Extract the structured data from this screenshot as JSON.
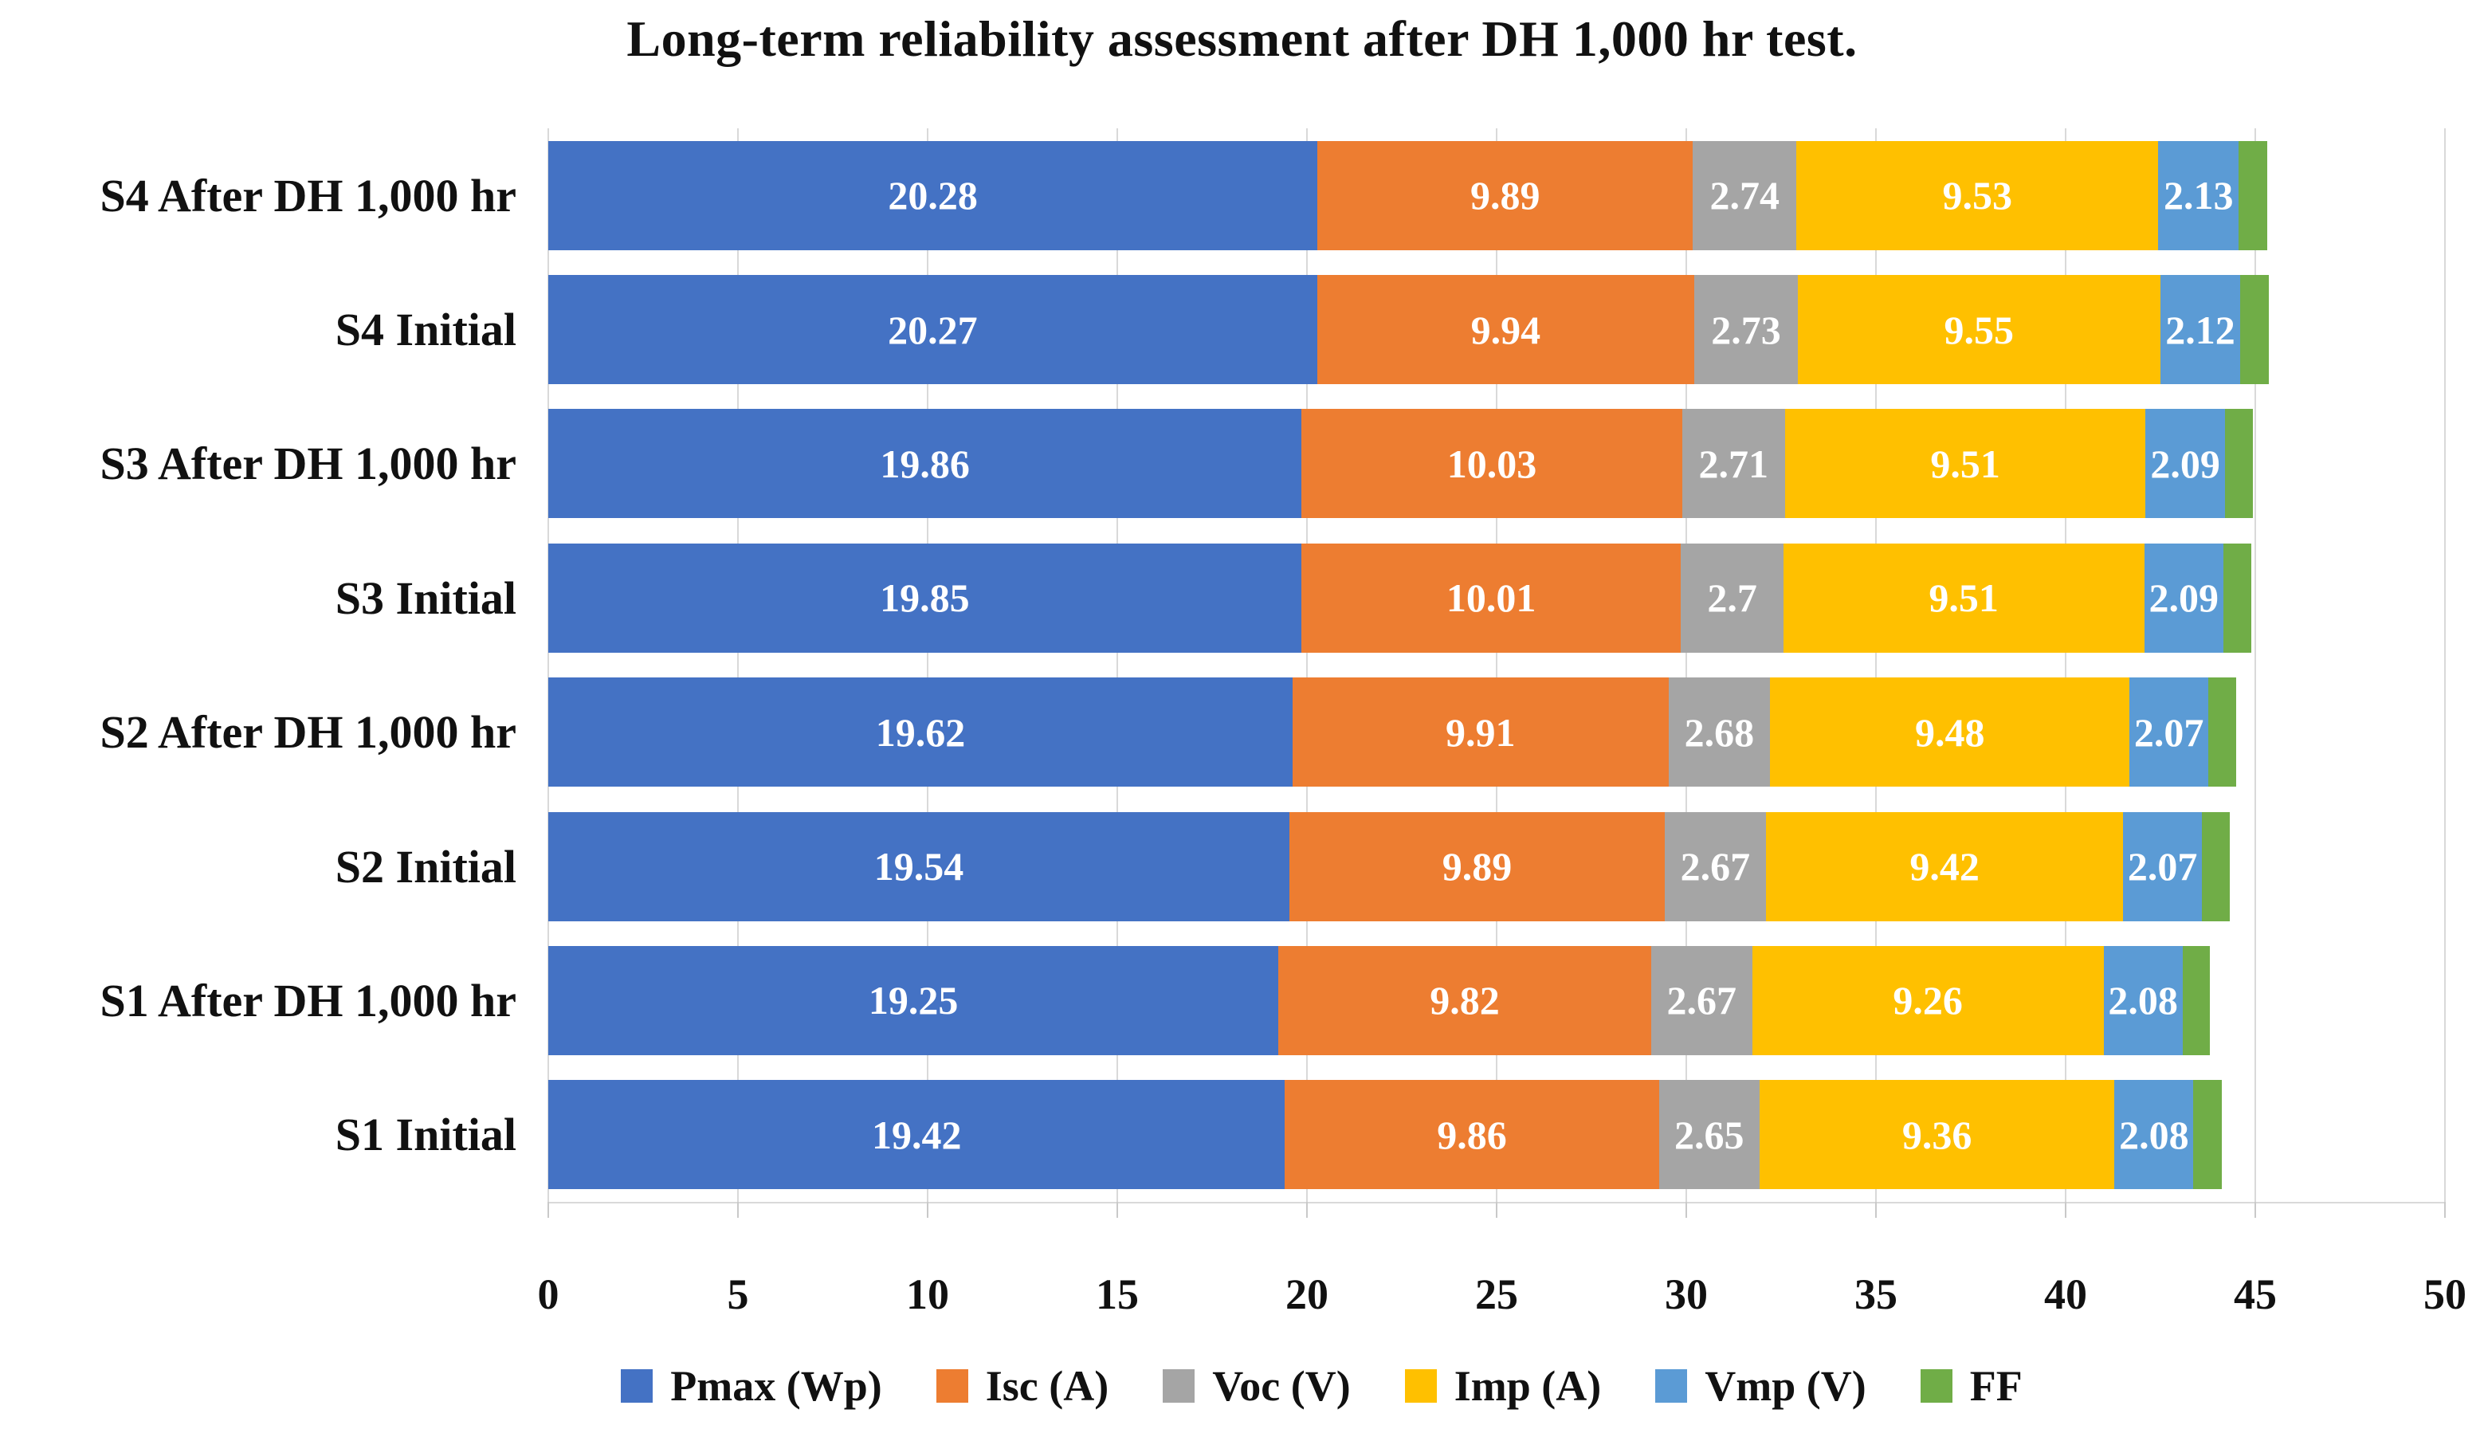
{
  "title": "Long-term reliability assessment after DH 1,000 hr test.",
  "chart_data": {
    "type": "bar",
    "orientation": "horizontal-stacked",
    "title": "Long-term reliability assessment after DH 1,000 hr test.",
    "categories": [
      "S4 After DH 1,000 hr",
      "S4 Initial",
      "S3 After DH 1,000 hr",
      "S3 Initial",
      "S2 After DH 1,000 hr",
      "S2 Initial",
      "S1 After DH 1,000 hr",
      "S1 Initial"
    ],
    "series": [
      {
        "name": "Pmax (Wp)",
        "color": "#4472C4",
        "labels_shown": true,
        "values": [
          20.28,
          20.27,
          19.86,
          19.85,
          19.62,
          19.54,
          19.25,
          19.42
        ]
      },
      {
        "name": "Isc (A)",
        "color": "#ED7D31",
        "labels_shown": true,
        "values": [
          9.89,
          9.94,
          10.03,
          10.01,
          9.91,
          9.89,
          9.82,
          9.86
        ]
      },
      {
        "name": "Voc (V)",
        "color": "#A5A5A5",
        "labels_shown": true,
        "values": [
          2.74,
          2.73,
          2.71,
          2.7,
          2.68,
          2.67,
          2.67,
          2.65
        ]
      },
      {
        "name": "Imp (A)",
        "color": "#FFC000",
        "labels_shown": true,
        "values": [
          9.53,
          9.55,
          9.51,
          9.51,
          9.48,
          9.42,
          9.26,
          9.36
        ]
      },
      {
        "name": "Vmp (V)",
        "color": "#5B9BD5",
        "labels_shown": true,
        "values": [
          2.13,
          2.12,
          2.09,
          2.09,
          2.07,
          2.07,
          2.08,
          2.08
        ]
      },
      {
        "name": "FF",
        "color": "#70AD47",
        "labels_shown": false,
        "values": [
          0.75,
          0.75,
          0.73,
          0.73,
          0.74,
          0.74,
          0.73,
          0.74
        ]
      }
    ],
    "xlabel": "",
    "ylabel": "",
    "xlim": [
      0,
      50
    ],
    "x_ticks": [
      0,
      5,
      10,
      15,
      20,
      25,
      30,
      35,
      40,
      45,
      50
    ],
    "grid": "vertical",
    "gridline_color": "#D9D9D9",
    "value_label_color": "#FFFFFF",
    "legend_position": "bottom"
  }
}
